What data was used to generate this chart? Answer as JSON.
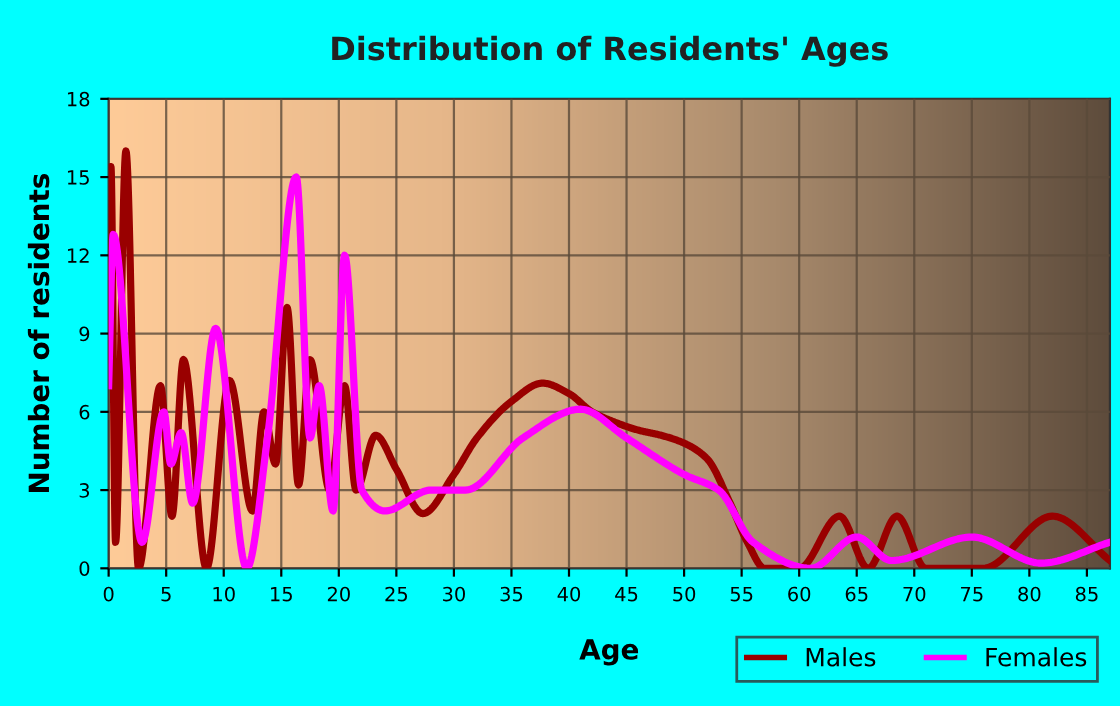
{
  "chart_data": {
    "type": "line",
    "title": "Distribution of Residents' Ages",
    "xlabel": "Age",
    "ylabel": "Number of residents",
    "series": [
      {
        "name": "Males",
        "color": "#990000",
        "x": [
          0,
          0.2,
          0.6,
          1.5,
          2.6,
          4.5,
          5.5,
          6.5,
          8.5,
          10.5,
          12.5,
          13.5,
          14.5,
          15.5,
          16.5,
          17.5,
          19.2,
          20.5,
          21.5,
          23.2,
          25,
          27.3,
          30,
          32,
          35,
          37.7,
          40,
          42,
          44,
          46,
          48,
          50,
          52,
          54,
          55.5,
          57,
          60,
          63.5,
          66,
          68.5,
          71,
          76,
          82,
          87
        ],
        "values": [
          8,
          15.4,
          1,
          16,
          0,
          7,
          2,
          8,
          0,
          7.2,
          2.2,
          6,
          4,
          10,
          3.2,
          8,
          3,
          7,
          3,
          5.1,
          3.8,
          2.1,
          3.6,
          5,
          6.4,
          7.1,
          6.7,
          6,
          5.6,
          5.3,
          5.1,
          4.8,
          4.2,
          2.5,
          1,
          0,
          0,
          2,
          0,
          2,
          0,
          0,
          2,
          0.3
        ]
      },
      {
        "name": "Females",
        "color": "#ff00ff",
        "x": [
          0,
          0.4,
          2.9,
          4.8,
          5.4,
          6.3,
          7.3,
          9.3,
          12,
          13.8,
          16.3,
          17.5,
          18.3,
          19.5,
          20.5,
          22,
          24,
          28,
          31,
          36,
          41,
          45,
          50,
          53,
          56,
          61,
          65,
          68,
          75,
          81,
          87
        ],
        "values": [
          7,
          12.8,
          1,
          6,
          4,
          5.2,
          2.5,
          9.2,
          0,
          5,
          15,
          5,
          7,
          2.2,
          12,
          3,
          2.2,
          3,
          3,
          5,
          6.1,
          5,
          3.6,
          3,
          1,
          0,
          1.2,
          0.3,
          1.2,
          0.2,
          1
        ]
      }
    ],
    "xlim": [
      0,
      87
    ],
    "xticks": [
      0,
      5,
      10,
      15,
      20,
      25,
      30,
      35,
      40,
      45,
      50,
      55,
      60,
      65,
      70,
      75,
      80,
      85
    ],
    "ylim": [
      0,
      18
    ],
    "yticks": [
      0,
      3,
      6,
      9,
      12,
      15,
      18
    ],
    "grid": true,
    "legend": "bottom right"
  }
}
